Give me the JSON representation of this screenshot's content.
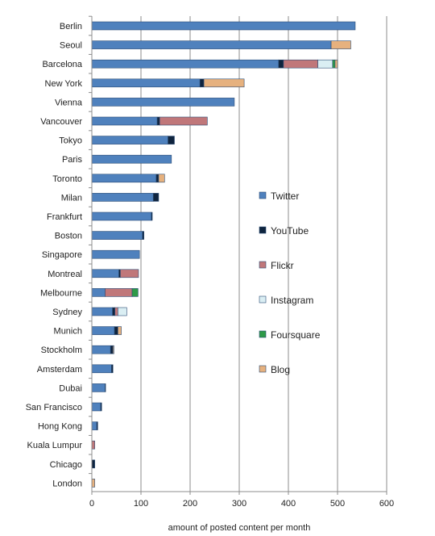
{
  "chart_data": {
    "type": "bar",
    "orientation": "horizontal",
    "stacked": true,
    "title": "",
    "xlabel": "amount of posted content per month",
    "ylabel": "",
    "xlim": [
      0,
      600
    ],
    "xticks": [
      0,
      100,
      200,
      300,
      400,
      500,
      600
    ],
    "grid": "vertical",
    "legend_position": "right-center",
    "categories": [
      "Berlin",
      "Seoul",
      "Barcelona",
      "New York",
      "Vienna",
      "Vancouver",
      "Tokyo",
      "Paris",
      "Toronto",
      "Milan",
      "Frankfurt",
      "Boston",
      "Singapore",
      "Montreal",
      "Melbourne",
      "Sydney",
      "Munich",
      "Stockholm",
      "Amsterdam",
      "Dubai",
      "San Francisco",
      "Hong Kong",
      "Kuala Lumpur",
      "Chicago",
      "London"
    ],
    "series": [
      {
        "name": "Twitter",
        "color": "#4f81bd",
        "values": [
          536,
          487,
          380,
          220,
          290,
          133,
          155,
          162,
          131,
          125,
          121,
          103,
          97,
          55,
          27,
          42,
          46,
          38,
          40,
          27,
          18,
          10,
          0,
          0,
          0
        ]
      },
      {
        "name": "YouTube",
        "color": "#0f243e",
        "values": [
          0,
          0,
          10,
          8,
          0,
          5,
          13,
          0,
          5,
          11,
          2,
          3,
          0,
          3,
          0,
          5,
          7,
          5,
          3,
          1,
          2,
          2,
          0,
          6,
          0
        ]
      },
      {
        "name": "Flickr",
        "color": "#c0777a",
        "values": [
          0,
          0,
          70,
          0,
          0,
          97,
          0,
          0,
          0,
          0,
          0,
          0,
          0,
          37,
          55,
          6,
          0,
          0,
          0,
          0,
          0,
          0,
          6,
          0,
          0
        ]
      },
      {
        "name": "Instagram",
        "color": "#daeef3",
        "values": [
          0,
          0,
          30,
          0,
          0,
          0,
          0,
          0,
          0,
          0,
          0,
          0,
          0,
          0,
          0,
          18,
          0,
          0,
          0,
          0,
          0,
          0,
          0,
          0,
          0
        ]
      },
      {
        "name": "Foursquare",
        "color": "#2e9a48",
        "values": [
          0,
          0,
          5,
          0,
          0,
          0,
          0,
          0,
          0,
          0,
          0,
          0,
          0,
          0,
          12,
          0,
          0,
          0,
          0,
          0,
          0,
          0,
          0,
          0,
          0
        ]
      },
      {
        "name": "Blog",
        "color": "#e6b17e",
        "values": [
          0,
          40,
          5,
          82,
          0,
          0,
          0,
          0,
          12,
          0,
          0,
          0,
          0,
          0,
          0,
          0,
          7,
          2,
          0,
          0,
          0,
          0,
          0,
          0,
          6
        ]
      }
    ]
  }
}
